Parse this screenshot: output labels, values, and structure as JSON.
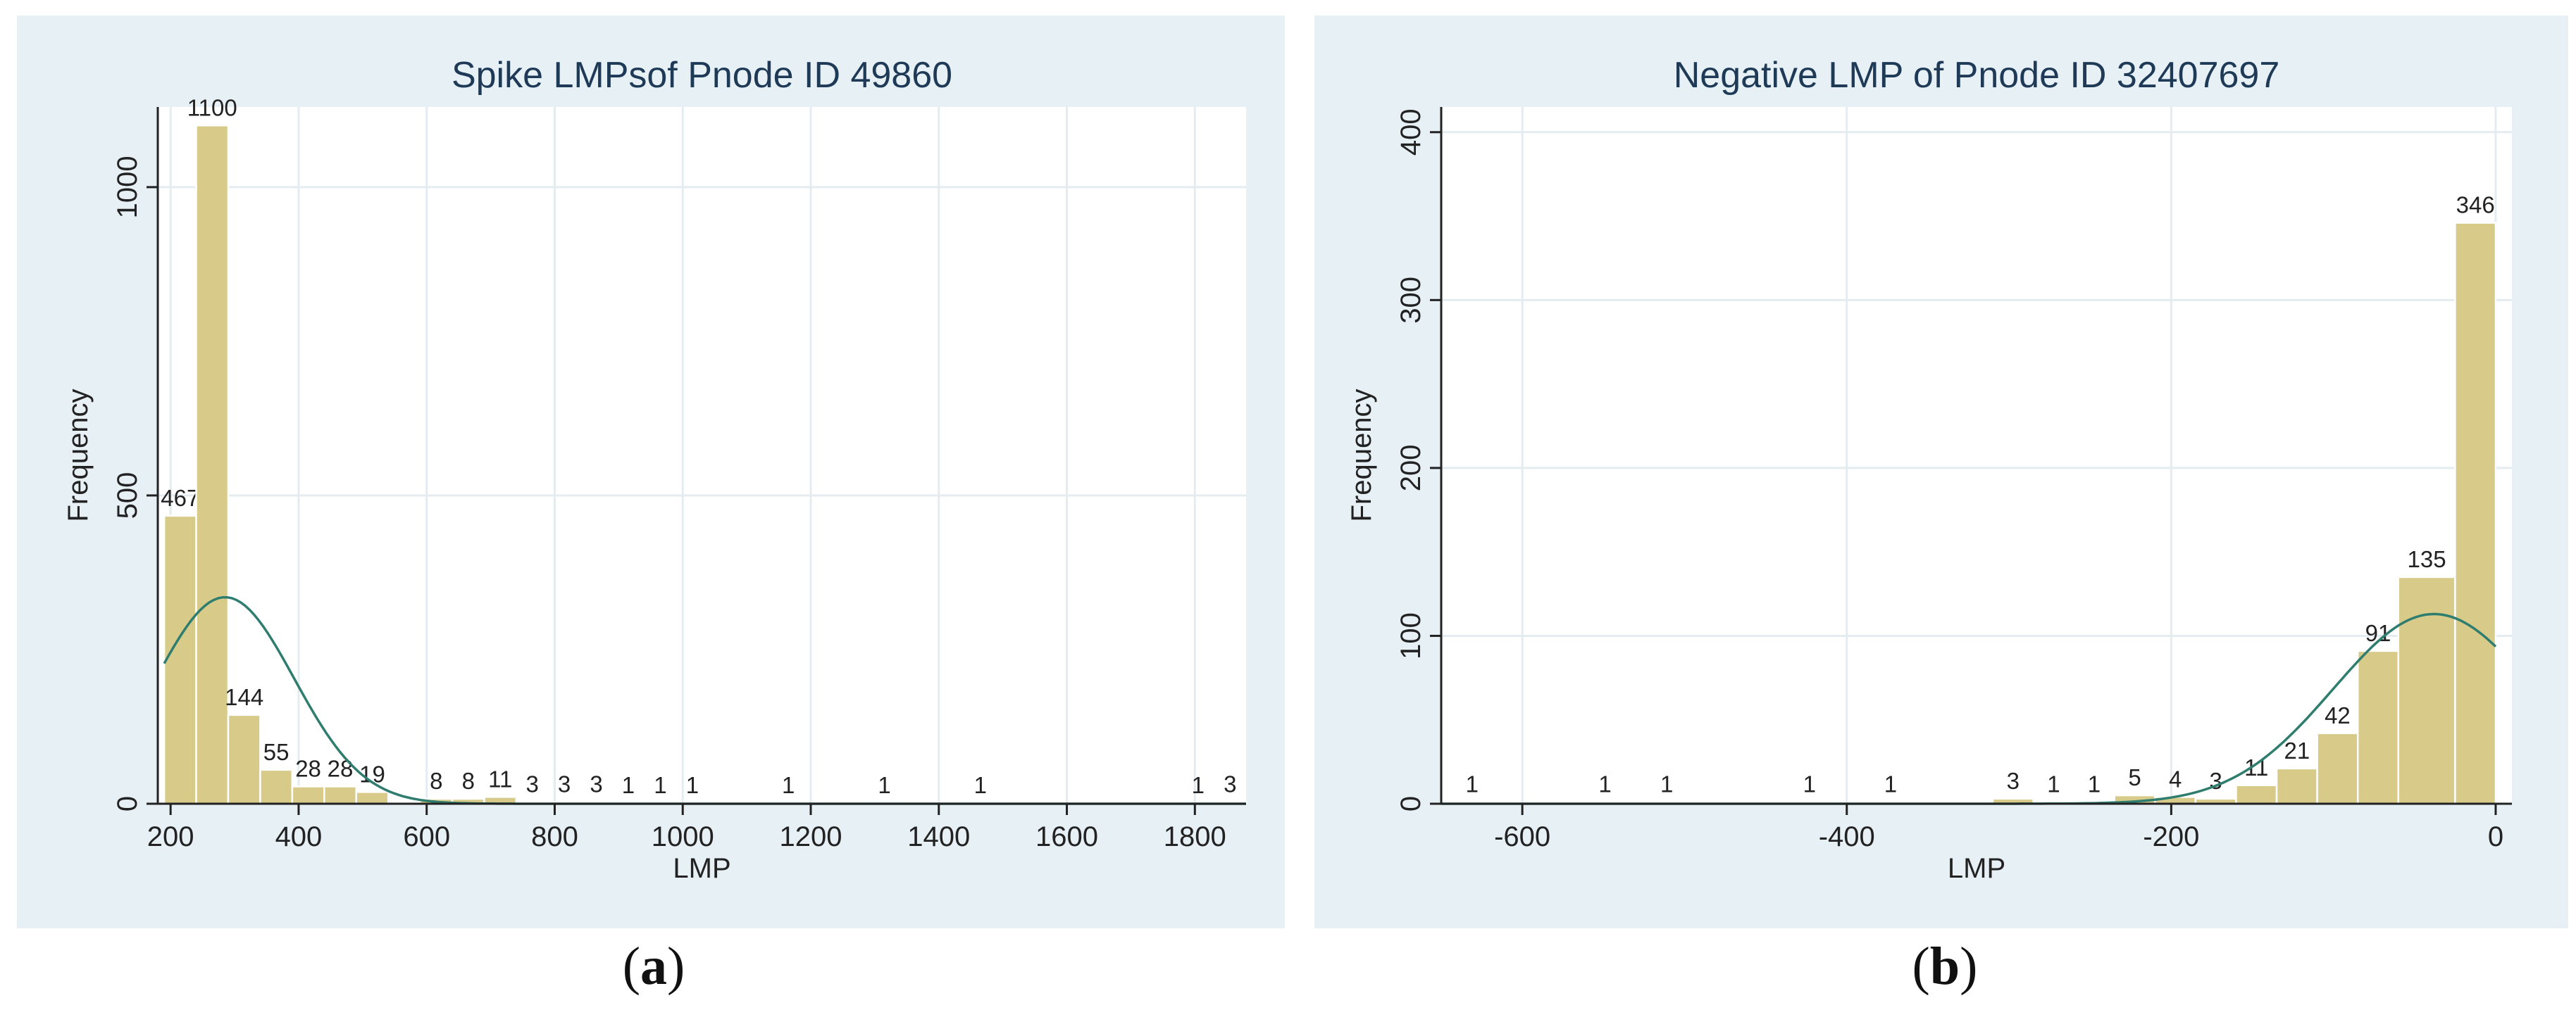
{
  "chart_data": [
    {
      "type": "bar",
      "subtype": "histogram",
      "title": "Spike LMPsof Pnode ID 49860",
      "xlabel": "LMP",
      "ylabel": "Frequency",
      "xlim": [
        180,
        1880
      ],
      "ylim": [
        0,
        1130
      ],
      "xticks": [
        200,
        400,
        600,
        800,
        1000,
        1200,
        1400,
        1600,
        1800
      ],
      "yticks": [
        0,
        500,
        1000
      ],
      "grid": true,
      "bars": [
        {
          "x0": 190,
          "x1": 240,
          "value": 467,
          "label": "467"
        },
        {
          "x0": 240,
          "x1": 290,
          "value": 1100,
          "label": "1100"
        },
        {
          "x0": 290,
          "x1": 340,
          "value": 144,
          "label": "144"
        },
        {
          "x0": 340,
          "x1": 390,
          "value": 55,
          "label": "55"
        },
        {
          "x0": 390,
          "x1": 440,
          "value": 28,
          "label": "28"
        },
        {
          "x0": 440,
          "x1": 490,
          "value": 28,
          "label": "28"
        },
        {
          "x0": 490,
          "x1": 540,
          "value": 19,
          "label": "19"
        },
        {
          "x0": 590,
          "x1": 640,
          "value": 8,
          "label": "8"
        },
        {
          "x0": 640,
          "x1": 690,
          "value": 8,
          "label": "8"
        },
        {
          "x0": 690,
          "x1": 740,
          "value": 11,
          "label": "11"
        },
        {
          "x0": 740,
          "x1": 790,
          "value": 3,
          "label": "3"
        },
        {
          "x0": 790,
          "x1": 840,
          "value": 3,
          "label": "3"
        },
        {
          "x0": 840,
          "x1": 890,
          "value": 3,
          "label": "3"
        },
        {
          "x0": 890,
          "x1": 940,
          "value": 1,
          "label": "1"
        },
        {
          "x0": 940,
          "x1": 990,
          "value": 1,
          "label": "1"
        },
        {
          "x0": 990,
          "x1": 1040,
          "value": 1,
          "label": "1"
        },
        {
          "x0": 1140,
          "x1": 1190,
          "value": 1,
          "label": "1"
        },
        {
          "x0": 1290,
          "x1": 1340,
          "value": 1,
          "label": "1"
        },
        {
          "x0": 1440,
          "x1": 1490,
          "value": 1,
          "label": "1"
        },
        {
          "x0": 1780,
          "x1": 1830,
          "value": 1,
          "label": "1"
        },
        {
          "x0": 1830,
          "x1": 1880,
          "value": 3,
          "label": "3"
        }
      ],
      "curve": {
        "type": "normal_density",
        "mean": 285,
        "sd": 108,
        "peak": 335
      },
      "colors": {
        "bar": "#d8cb8a",
        "bar_edge": "#ffffff",
        "curve": "#2e7d6f",
        "plot_bg": "#ffffff",
        "panel_bg": "#e6f0f5",
        "title": "#1f3a57",
        "grid": "#e4ecf0"
      },
      "caption": {
        "open": "(",
        "letter": "a",
        "close": ")"
      }
    },
    {
      "type": "bar",
      "subtype": "histogram",
      "title": "Negative LMP of Pnode ID 32407697",
      "xlabel": "LMP",
      "ylabel": "Frequency",
      "xlim": [
        -650,
        10
      ],
      "ylim": [
        0,
        415
      ],
      "xticks": [
        -600,
        -400,
        -200,
        0
      ],
      "yticks": [
        0,
        100,
        200,
        300,
        400
      ],
      "grid": true,
      "bars": [
        {
          "x0": -650,
          "x1": -612,
          "value": 1,
          "label": "1"
        },
        {
          "x0": -568,
          "x1": -530,
          "value": 1,
          "label": "1"
        },
        {
          "x0": -530,
          "x1": -492,
          "value": 1,
          "label": "1"
        },
        {
          "x0": -442,
          "x1": -404,
          "value": 1,
          "label": "1"
        },
        {
          "x0": -392,
          "x1": -354,
          "value": 1,
          "label": "1"
        },
        {
          "x0": -310,
          "x1": -285,
          "value": 3,
          "label": "3"
        },
        {
          "x0": -285,
          "x1": -260,
          "value": 1,
          "label": "1"
        },
        {
          "x0": -260,
          "x1": -235,
          "value": 1,
          "label": "1"
        },
        {
          "x0": -235,
          "x1": -210,
          "value": 5,
          "label": "5"
        },
        {
          "x0": -210,
          "x1": -185,
          "value": 4,
          "label": "4"
        },
        {
          "x0": -185,
          "x1": -160,
          "value": 3,
          "label": "3"
        },
        {
          "x0": -160,
          "x1": -135,
          "value": 11,
          "label": "11"
        },
        {
          "x0": -135,
          "x1": -110,
          "value": 21,
          "label": "21"
        },
        {
          "x0": -110,
          "x1": -85,
          "value": 42,
          "label": "42"
        },
        {
          "x0": -85,
          "x1": -60,
          "value": 91,
          "label": "91"
        },
        {
          "x0": -60,
          "x1": -25,
          "value": 135,
          "label": "135"
        },
        {
          "x0": -25,
          "x1": 0,
          "value": 346,
          "label": "346"
        }
      ],
      "curve": {
        "type": "normal_density",
        "mean": -38,
        "sd": 62,
        "peak": 113
      },
      "colors": {
        "bar": "#d8cb8a",
        "bar_edge": "#ffffff",
        "curve": "#2e7d6f",
        "plot_bg": "#ffffff",
        "panel_bg": "#e6f0f5",
        "title": "#1f3a57",
        "grid": "#e4ecf0"
      },
      "caption": {
        "open": "(",
        "letter": "b",
        "close": ")"
      }
    }
  ]
}
